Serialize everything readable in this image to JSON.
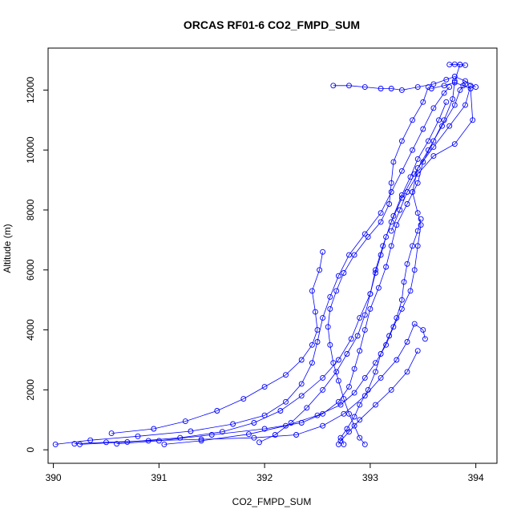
{
  "chart_data": {
    "type": "scatter",
    "title": "ORCAS RF01-6 CO2_FMPD_SUM",
    "xlabel": "CO2_FMPD_SUM",
    "ylabel": "Altitude (m)",
    "xlim": [
      389.95,
      394.2
    ],
    "ylim": [
      -450,
      13400
    ],
    "xticks": [
      390,
      391,
      392,
      393,
      394
    ],
    "yticks": [
      0,
      2000,
      4000,
      6000,
      8000,
      10000,
      12000
    ],
    "grid": false,
    "marker": "open-circle",
    "connected": true,
    "color": "#0000ff",
    "series": [
      {
        "points": [
          [
            390.02,
            180
          ],
          [
            390.35,
            320
          ],
          [
            390.8,
            450
          ],
          [
            391.3,
            620
          ],
          [
            391.7,
            860
          ],
          [
            392.0,
            1150
          ],
          [
            392.2,
            1600
          ],
          [
            392.35,
            2200
          ],
          [
            392.45,
            2900
          ],
          [
            392.5,
            3600
          ],
          [
            392.55,
            4400
          ],
          [
            392.62,
            5100
          ],
          [
            392.7,
            5800
          ],
          [
            392.8,
            6500
          ],
          [
            392.95,
            7200
          ],
          [
            393.1,
            7900
          ],
          [
            393.2,
            8600
          ],
          [
            393.3,
            9300
          ],
          [
            393.4,
            10000
          ],
          [
            393.5,
            10700
          ],
          [
            393.6,
            11400
          ],
          [
            393.7,
            11900
          ],
          [
            393.75,
            12100
          ]
        ]
      },
      {
        "points": [
          [
            390.25,
            180
          ],
          [
            390.7,
            260
          ],
          [
            391.2,
            400
          ],
          [
            391.6,
            600
          ],
          [
            391.9,
            900
          ],
          [
            392.15,
            1300
          ],
          [
            392.35,
            1800
          ],
          [
            392.55,
            2400
          ],
          [
            392.7,
            3000
          ],
          [
            392.82,
            3700
          ],
          [
            392.9,
            4400
          ],
          [
            393.0,
            5200
          ],
          [
            393.05,
            6000
          ],
          [
            393.12,
            6800
          ],
          [
            393.2,
            7600
          ],
          [
            393.3,
            8400
          ],
          [
            393.42,
            9200
          ],
          [
            393.55,
            10000
          ],
          [
            393.68,
            10800
          ],
          [
            393.8,
            11500
          ],
          [
            393.85,
            12000
          ],
          [
            393.9,
            12200
          ]
        ]
      },
      {
        "points": [
          [
            390.6,
            200
          ],
          [
            391.0,
            300
          ],
          [
            391.5,
            500
          ],
          [
            392.0,
            700
          ],
          [
            392.35,
            900
          ],
          [
            392.55,
            1200
          ],
          [
            392.7,
            1600
          ],
          [
            392.8,
            2100
          ],
          [
            392.85,
            2700
          ],
          [
            392.9,
            3300
          ],
          [
            392.95,
            4000
          ],
          [
            393.0,
            4700
          ],
          [
            393.08,
            5400
          ],
          [
            393.15,
            6100
          ],
          [
            393.2,
            6800
          ],
          [
            393.25,
            7500
          ],
          [
            393.35,
            8200
          ],
          [
            393.45,
            8900
          ],
          [
            393.5,
            9600
          ],
          [
            393.6,
            10300
          ],
          [
            393.7,
            11000
          ],
          [
            393.78,
            11700
          ],
          [
            393.8,
            12300
          ],
          [
            393.85,
            12850
          ]
        ]
      },
      {
        "points": [
          [
            391.05,
            180
          ],
          [
            391.4,
            300
          ],
          [
            391.85,
            520
          ],
          [
            392.2,
            800
          ],
          [
            392.5,
            1150
          ],
          [
            392.72,
            1500
          ],
          [
            392.85,
            1900
          ],
          [
            392.95,
            2400
          ],
          [
            393.05,
            2900
          ],
          [
            393.15,
            3500
          ],
          [
            393.22,
            4100
          ],
          [
            393.3,
            4700
          ],
          [
            393.38,
            5300
          ],
          [
            393.42,
            6000
          ],
          [
            393.45,
            6800
          ],
          [
            393.48,
            7500
          ],
          [
            393.45,
            7900
          ],
          [
            393.4,
            8600
          ],
          [
            393.45,
            9400
          ],
          [
            393.6,
            10100
          ],
          [
            393.75,
            10800
          ],
          [
            393.9,
            11500
          ],
          [
            393.95,
            12150
          ]
        ]
      },
      {
        "points": [
          [
            392.75,
            180
          ],
          [
            392.72,
            400
          ],
          [
            392.78,
            700
          ],
          [
            392.85,
            1100
          ],
          [
            392.9,
            1500
          ],
          [
            392.98,
            2000
          ],
          [
            393.05,
            2600
          ],
          [
            393.1,
            3200
          ],
          [
            393.18,
            3800
          ],
          [
            393.25,
            4400
          ],
          [
            393.3,
            5000
          ],
          [
            393.32,
            5600
          ],
          [
            393.35,
            6200
          ],
          [
            393.4,
            6800
          ],
          [
            393.45,
            7300
          ],
          [
            393.48,
            7700
          ]
        ]
      },
      {
        "points": [
          [
            392.95,
            180
          ],
          [
            392.9,
            400
          ],
          [
            392.85,
            800
          ],
          [
            392.8,
            1200
          ],
          [
            392.75,
            1700
          ],
          [
            392.7,
            2300
          ],
          [
            392.65,
            2900
          ],
          [
            392.62,
            3500
          ],
          [
            392.6,
            4100
          ],
          [
            392.62,
            4700
          ],
          [
            392.68,
            5300
          ],
          [
            392.75,
            5900
          ],
          [
            392.85,
            6500
          ],
          [
            392.98,
            7100
          ],
          [
            393.1,
            7600
          ],
          [
            393.18,
            8200
          ],
          [
            393.2,
            8900
          ],
          [
            393.22,
            9600
          ],
          [
            393.3,
            10300
          ],
          [
            393.4,
            11000
          ],
          [
            393.5,
            11600
          ],
          [
            393.55,
            12100
          ]
        ]
      },
      {
        "points": [
          [
            393.45,
            3300
          ],
          [
            393.35,
            2600
          ],
          [
            393.2,
            2000
          ],
          [
            393.05,
            1500
          ],
          [
            392.9,
            1000
          ],
          [
            392.8,
            600
          ],
          [
            392.72,
            300
          ],
          [
            392.7,
            180
          ]
        ]
      },
      {
        "points": [
          [
            392.65,
            12150
          ],
          [
            392.8,
            12150
          ],
          [
            392.95,
            12100
          ],
          [
            393.1,
            12050
          ],
          [
            393.2,
            12050
          ],
          [
            393.3,
            12000
          ],
          [
            393.45,
            12100
          ],
          [
            393.6,
            12200
          ],
          [
            393.72,
            12350
          ],
          [
            393.8,
            12450
          ],
          [
            393.9,
            12300
          ],
          [
            394.0,
            12100
          ]
        ]
      },
      {
        "points": [
          [
            393.75,
            12850
          ],
          [
            393.8,
            12860
          ],
          [
            393.85,
            12850
          ],
          [
            393.9,
            12830
          ]
        ]
      },
      {
        "points": [
          [
            390.55,
            550
          ],
          [
            390.95,
            700
          ],
          [
            391.25,
            950
          ],
          [
            391.55,
            1300
          ],
          [
            391.8,
            1700
          ],
          [
            392.0,
            2100
          ],
          [
            392.2,
            2500
          ],
          [
            392.35,
            3000
          ],
          [
            392.45,
            3500
          ],
          [
            392.5,
            4000
          ],
          [
            392.48,
            4600
          ],
          [
            392.45,
            5300
          ],
          [
            392.52,
            6000
          ],
          [
            392.55,
            6600
          ]
        ]
      },
      {
        "points": [
          [
            390.2,
            200
          ],
          [
            390.5,
            250
          ],
          [
            390.9,
            300
          ],
          [
            391.4,
            350
          ],
          [
            391.9,
            400
          ],
          [
            392.3,
            500
          ],
          [
            392.55,
            800
          ],
          [
            392.75,
            1200
          ],
          [
            392.95,
            1800
          ],
          [
            393.1,
            2400
          ],
          [
            393.25,
            3000
          ],
          [
            393.35,
            3600
          ],
          [
            393.42,
            4200
          ],
          [
            393.5,
            4000
          ],
          [
            393.52,
            3700
          ]
        ]
      },
      {
        "points": [
          [
            391.95,
            250
          ],
          [
            392.1,
            500
          ],
          [
            392.25,
            900
          ],
          [
            392.4,
            1400
          ],
          [
            392.55,
            2000
          ],
          [
            392.68,
            2600
          ],
          [
            392.78,
            3200
          ],
          [
            392.88,
            3800
          ],
          [
            392.95,
            4500
          ],
          [
            393.0,
            5200
          ],
          [
            393.05,
            5900
          ],
          [
            393.1,
            6500
          ],
          [
            393.15,
            7100
          ],
          [
            393.22,
            7800
          ],
          [
            393.3,
            8500
          ],
          [
            393.38,
            9100
          ],
          [
            393.45,
            9700
          ],
          [
            393.55,
            10300
          ],
          [
            393.65,
            11000
          ],
          [
            393.72,
            11600
          ]
        ]
      },
      {
        "points": [
          [
            393.58,
            12050
          ],
          [
            393.7,
            12150
          ],
          [
            393.8,
            12250
          ],
          [
            393.88,
            12150
          ],
          [
            393.95,
            12050
          ],
          [
            393.97,
            11000
          ],
          [
            393.8,
            10200
          ],
          [
            393.6,
            9800
          ],
          [
            393.45,
            9200
          ],
          [
            393.35,
            8600
          ],
          [
            393.28,
            8000
          ],
          [
            393.2,
            7300
          ]
        ]
      }
    ]
  }
}
